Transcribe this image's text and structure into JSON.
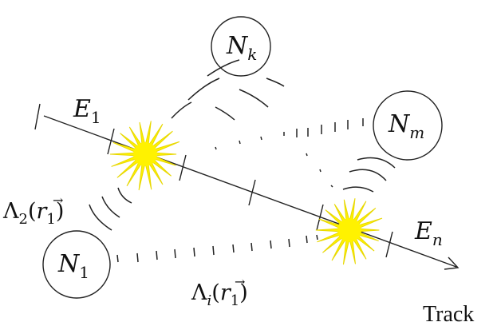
{
  "nodes": {
    "n_k": {
      "base": "N",
      "sub": "k"
    },
    "n_m": {
      "base": "N",
      "sub": "m"
    },
    "n_1": {
      "base": "N",
      "sub": "1"
    }
  },
  "track_label": "Track",
  "energy_labels": {
    "e_1": {
      "base": "E",
      "sub": "1"
    },
    "e_n": {
      "base": "E",
      "sub": "n"
    }
  },
  "attenuation_labels": {
    "lambda_2": {
      "symbol": "Λ",
      "sub": "2",
      "arg_open": "(",
      "vec": "r",
      "vec_arrow": "→",
      "vec_sub": "1",
      "arg_close": ")"
    },
    "lambda_i": {
      "symbol": "Λ",
      "sub": "i",
      "arg_open": "(",
      "vec": "r",
      "vec_arrow": "→",
      "vec_sub": "1",
      "arg_close": ")"
    }
  },
  "colors": {
    "burst": "#FFF200",
    "burst_edge": "#E8D800",
    "line": "#222222"
  }
}
